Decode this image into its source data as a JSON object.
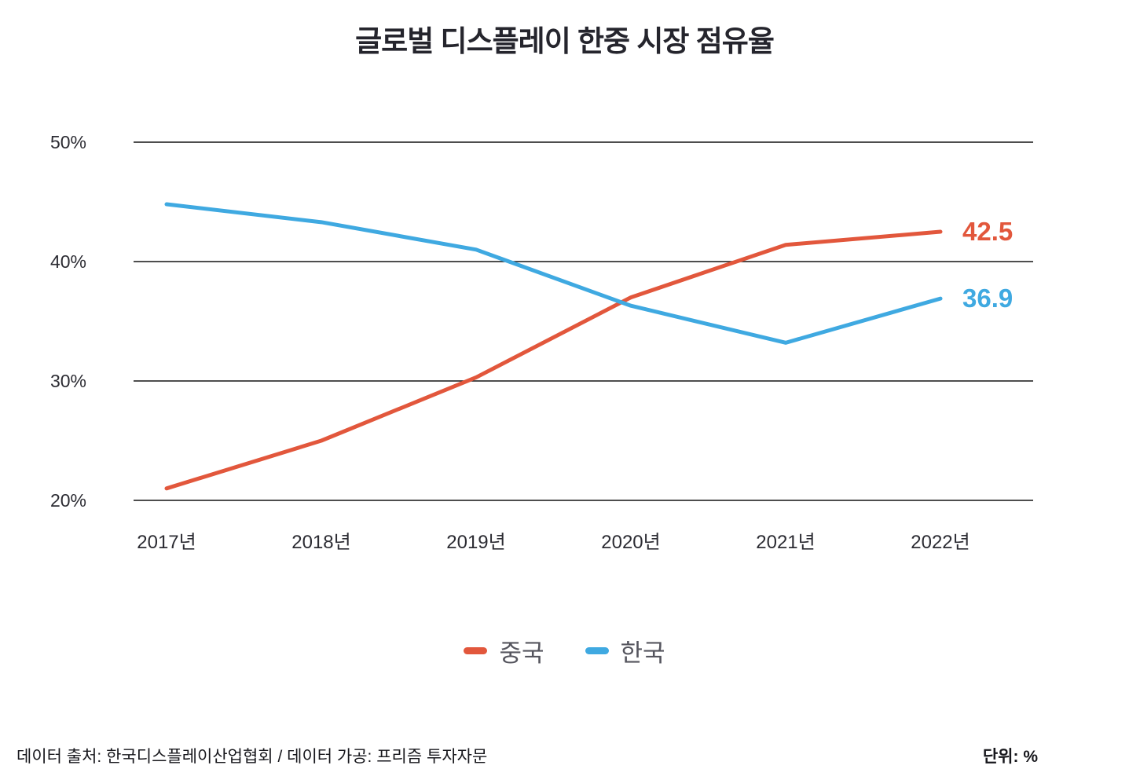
{
  "title": "글로벌 디스플레이 한중 시장 점유율",
  "legend": {
    "items": [
      {
        "label": "중국",
        "color": "#e2573c"
      },
      {
        "label": "한국",
        "color": "#3fa9e1"
      }
    ]
  },
  "footer": {
    "source": "데이터 출처: 한국디스플레이산업협회 / 데이터 가공: 프리즘 투자자문",
    "unit": "단위: %"
  },
  "chart_data": {
    "type": "line",
    "title": "글로벌 디스플레이 한중 시장 점유율",
    "categories": [
      "2017년",
      "2018년",
      "2019년",
      "2020년",
      "2021년",
      "2022년"
    ],
    "series": [
      {
        "name": "중국",
        "color": "#e2573c",
        "values": [
          21.0,
          25.0,
          30.3,
          37.0,
          41.4,
          42.5
        ],
        "end_label": "42.5"
      },
      {
        "name": "한국",
        "color": "#3fa9e1",
        "values": [
          44.8,
          43.3,
          41.0,
          36.3,
          33.2,
          36.9
        ],
        "end_label": "36.9"
      }
    ],
    "ylim": [
      20,
      50
    ],
    "yticks": [
      20,
      30,
      40,
      50
    ],
    "ytick_suffix": "%",
    "grid": "horizontal",
    "legend_position": "bottom",
    "xlabel": "",
    "ylabel": "",
    "unit": "%"
  }
}
